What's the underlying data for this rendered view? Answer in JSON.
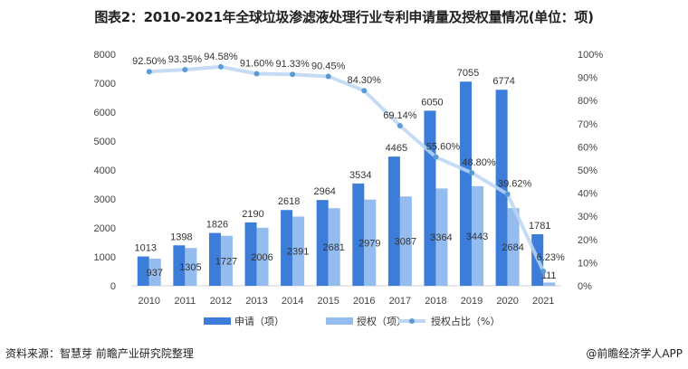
{
  "title": "图表2：2010-2021年全球垃圾渗滤液处理行业专利申请量及授权量情况(单位：项)",
  "source": "资料来源：智慧芽 前瞻产业研究院整理",
  "credit": "@前瞻经济学人APP",
  "watermark": "前瞻产业研究院",
  "colors": {
    "applications": "#3b7dd8",
    "grants": "#94bcef",
    "ratio_line": "#bcd5f3",
    "ratio_marker": "#5b9bd5"
  },
  "chart_data": {
    "type": "bar",
    "categories": [
      "2010",
      "2011",
      "2012",
      "2013",
      "2014",
      "2015",
      "2016",
      "2017",
      "2018",
      "2019",
      "2020",
      "2021"
    ],
    "series": [
      {
        "name": "申请（项）",
        "type": "bar",
        "axis": "left",
        "values": [
          1013,
          1398,
          1826,
          2190,
          2618,
          2964,
          3534,
          4465,
          6050,
          7055,
          6774,
          1781
        ]
      },
      {
        "name": "授权（项）",
        "type": "bar",
        "axis": "left",
        "values": [
          937,
          1305,
          1727,
          2006,
          2391,
          2681,
          2979,
          3087,
          3364,
          3443,
          2684,
          111
        ]
      },
      {
        "name": "授权占比（%）",
        "type": "line",
        "axis": "right",
        "values": [
          92.5,
          93.35,
          94.58,
          91.6,
          91.33,
          90.45,
          84.3,
          69.14,
          55.6,
          48.8,
          39.62,
          6.23
        ]
      }
    ],
    "left_axis": {
      "range": [
        0,
        8000
      ],
      "ticks": [
        "0",
        "1000",
        "2000",
        "3000",
        "4000",
        "5000",
        "6000",
        "7000",
        "8000"
      ]
    },
    "right_axis": {
      "range": [
        0,
        100
      ],
      "ticks": [
        "0%",
        "10%",
        "20%",
        "30%",
        "40%",
        "50%",
        "60%",
        "70%",
        "80%",
        "90%",
        "100%"
      ]
    },
    "grid": false,
    "legend": "bottom"
  }
}
